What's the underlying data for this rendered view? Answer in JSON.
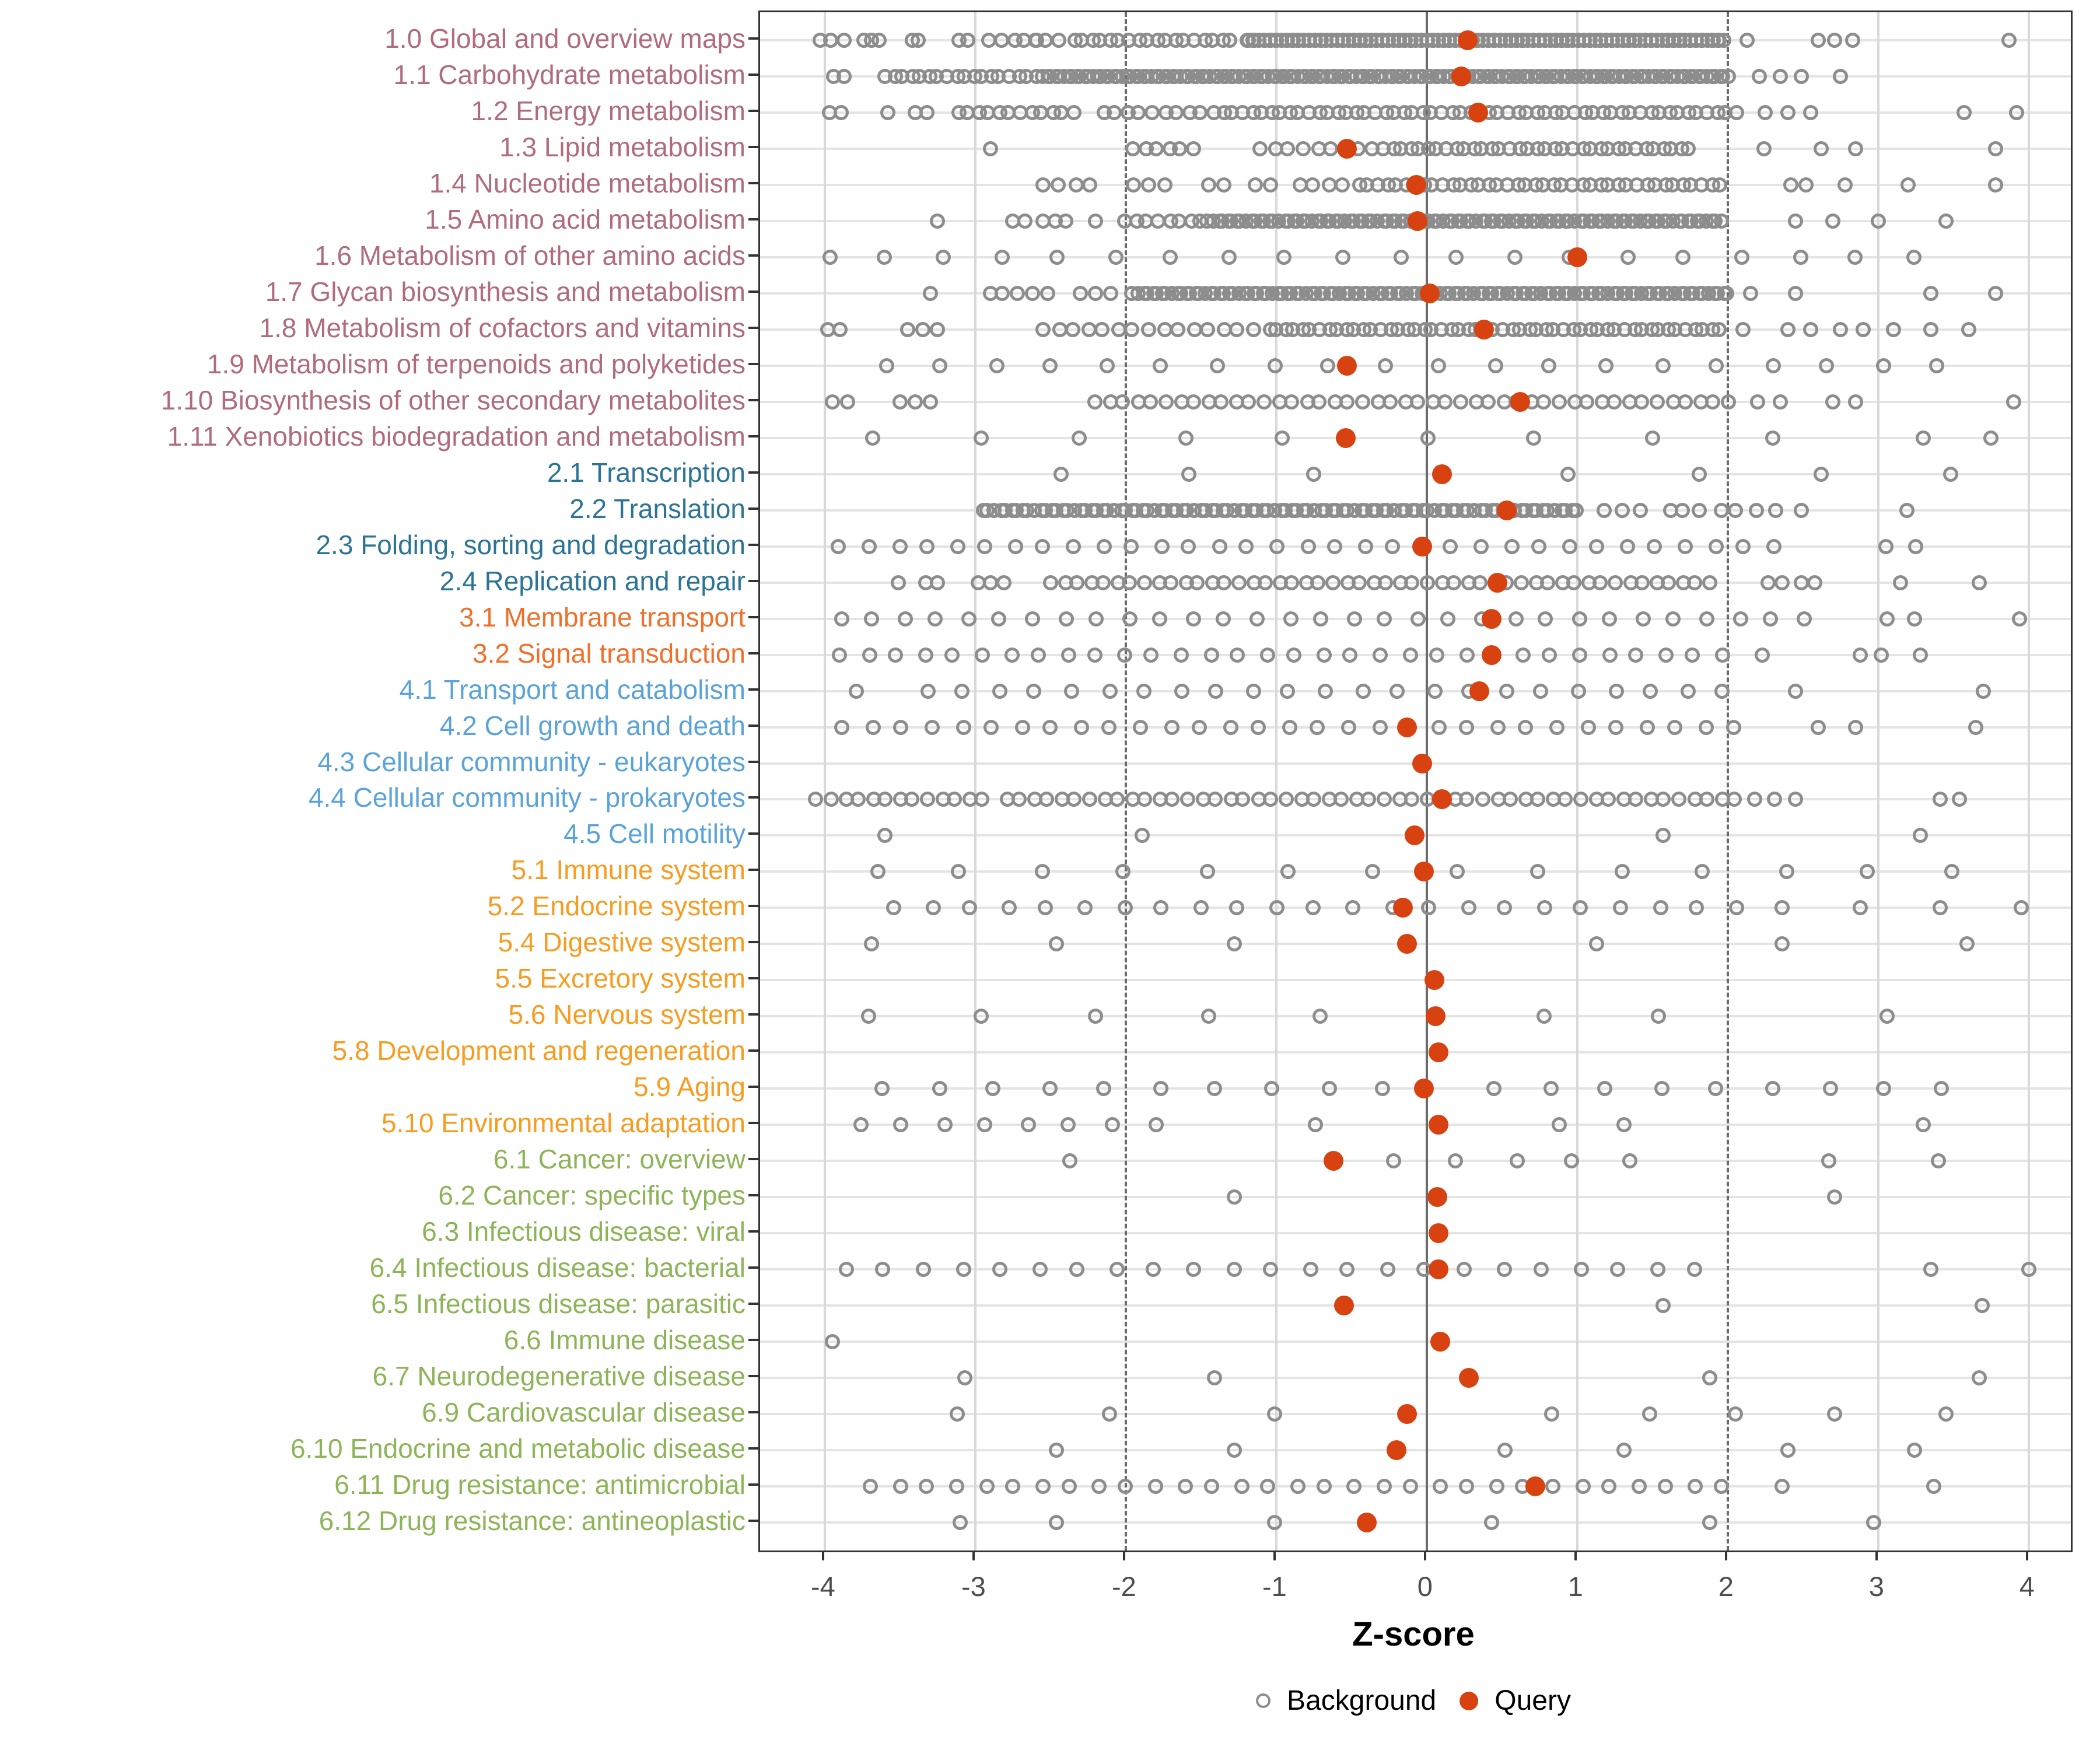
{
  "chart_data": {
    "type": "scatter",
    "title": "",
    "xlabel": "Z-score",
    "ylabel": "",
    "xlim": [
      -4.43,
      4.28
    ],
    "x_ticks": [
      -4,
      -3,
      -2,
      -1,
      0,
      1,
      2,
      3,
      4
    ],
    "grid": true,
    "reference_lines": {
      "solid": 0,
      "dashed": [
        -2,
        2
      ]
    },
    "marker_colors": {
      "background": "#8d8d8d",
      "query": "#d84211"
    },
    "group_colors": {
      "1": "#b06c7c",
      "2": "#2c7495",
      "3": "#f0702b",
      "4": "#5aa3d8",
      "5": "#f79c20",
      "6": "#8db457"
    },
    "legend": {
      "position": "bottom",
      "background_label": "Background",
      "query_label": "Query"
    },
    "rows": [
      {
        "label": "1.0 Global and overview maps",
        "group": "1",
        "query": 0.27,
        "bg_points": [
          -4.03,
          -3.96,
          -3.87,
          -3.74,
          -3.69,
          -3.64,
          -3.42,
          -3.38,
          -3.11,
          -3.05,
          -2.6,
          2.13,
          2.6,
          2.71,
          2.83,
          3.87
        ],
        "bg_bands": [
          [
            -2.9,
            -2.45,
            7
          ],
          [
            -2.35,
            -1.3,
            18
          ],
          [
            -1.2,
            1.97,
            150
          ]
        ]
      },
      {
        "label": "1.1 Carbohydrate metabolism",
        "group": "1",
        "query": 0.23,
        "bg_points": [
          -3.94,
          -3.87,
          2.21,
          2.35,
          2.49,
          2.75
        ],
        "bg_bands": [
          [
            -3.6,
            -2.6,
            18
          ],
          [
            -2.55,
            2.0,
            165
          ]
        ]
      },
      {
        "label": "1.2 Energy metabolism",
        "group": "1",
        "query": 0.34,
        "bg_points": [
          -3.97,
          -3.89,
          -3.58,
          -3.4,
          -3.32,
          2.25,
          2.4,
          2.55,
          3.57,
          3.92
        ],
        "bg_bands": [
          [
            -3.12,
            -2.35,
            12
          ],
          [
            -2.15,
            -1.42,
            10
          ],
          [
            -1.35,
            2.05,
            55
          ]
        ]
      },
      {
        "label": "1.3 Lipid metabolism",
        "group": "1",
        "query": -0.53,
        "bg_points": [
          -2.9,
          2.24,
          2.62,
          2.85,
          3.78
        ],
        "bg_bands": [
          [
            -1.95,
            -1.55,
            6
          ],
          [
            -1.1,
            -0.45,
            8
          ],
          [
            -0.35,
            1.75,
            36
          ]
        ]
      },
      {
        "label": "1.4 Nucleotide metabolism",
        "group": "1",
        "query": -0.07,
        "bg_points": [
          -2.55,
          -2.45,
          -2.33,
          -2.24,
          -1.95,
          -1.85,
          -1.74,
          -1.45,
          -1.35,
          -1.14,
          -1.04,
          2.42,
          2.52,
          2.78,
          3.2,
          3.78
        ],
        "bg_bands": [
          [
            -0.85,
            -0.55,
            4
          ],
          [
            -0.45,
            1.95,
            40
          ]
        ]
      },
      {
        "label": "1.5 Amino acid metabolism",
        "group": "1",
        "query": -0.06,
        "bg_points": [
          -3.25,
          -2.75,
          -2.67,
          -2.55,
          -2.47,
          -2.4,
          -2.2,
          2.45,
          2.7,
          3.0,
          3.45
        ],
        "bg_bands": [
          [
            -2.0,
            -1.5,
            8
          ],
          [
            -1.45,
            1.95,
            110
          ]
        ]
      },
      {
        "label": "1.6 Metabolism of other amino acids",
        "group": "1",
        "query": 1.0,
        "bg_points": [],
        "bg_bands": [
          [
            -3.97,
            3.23,
            20
          ]
        ]
      },
      {
        "label": "1.7 Glycan biosynthesis and metabolism",
        "group": "1",
        "query": 0.02,
        "bg_points": [
          -3.3,
          -2.9,
          -2.82,
          -2.72,
          -2.62,
          -2.52,
          -2.3,
          -2.2,
          -2.1,
          2.15,
          2.45,
          3.35,
          3.78
        ],
        "bg_bands": [
          [
            -1.95,
            2.0,
            125
          ]
        ]
      },
      {
        "label": "1.8 Metabolism of cofactors and vitamins",
        "group": "1",
        "query": 0.38,
        "bg_points": [
          -3.98,
          -3.9,
          -3.45,
          -3.35,
          -3.25,
          2.1,
          2.4,
          2.55,
          2.75,
          2.9,
          3.1,
          3.35,
          3.6
        ],
        "bg_bands": [
          [
            -2.55,
            -1.05,
            16
          ],
          [
            -1.0,
            1.95,
            52
          ]
        ]
      },
      {
        "label": "1.9 Metabolism of terpenoids and polyketides",
        "group": "1",
        "query": -0.53,
        "bg_points": [],
        "bg_bands": [
          [
            -3.6,
            3.4,
            20
          ]
        ]
      },
      {
        "label": "1.10 Biosynthesis of other secondary metabolites",
        "group": "1",
        "query": 0.62,
        "bg_points": [
          -3.95,
          -3.85,
          -3.5,
          -3.4,
          -3.3,
          2.2,
          2.35,
          2.7,
          2.85,
          3.9
        ],
        "bg_bands": [
          [
            -2.2,
            2.0,
            46
          ]
        ]
      },
      {
        "label": "1.11 Xenobiotics biodegradation and metabolism",
        "group": "1",
        "query": -0.54,
        "bg_points": [
          -3.68,
          -2.96,
          -2.31,
          -1.6,
          -0.96,
          0.01,
          0.71,
          1.5,
          2.3,
          3.3,
          3.75
        ],
        "bg_bands": []
      },
      {
        "label": "2.1 Transcription",
        "group": "2",
        "query": 0.1,
        "bg_points": [
          -2.43,
          -1.58,
          -0.75,
          0.94,
          1.81,
          2.62,
          3.48
        ],
        "bg_bands": []
      },
      {
        "label": "2.2 Translation",
        "group": "2",
        "query": 0.53,
        "bg_points": [
          1.18,
          1.3,
          1.42,
          1.62,
          1.7,
          1.81,
          1.96,
          2.05,
          2.19,
          2.32,
          2.49,
          3.19
        ],
        "bg_bands": [
          [
            -2.95,
            1.0,
            105
          ]
        ]
      },
      {
        "label": "2.3 Folding, sorting and degradation",
        "group": "2",
        "query": -0.03,
        "bg_points": [
          3.05,
          3.25
        ],
        "bg_bands": [
          [
            -3.9,
            2.3,
            33
          ]
        ]
      },
      {
        "label": "2.4 Replication and repair",
        "group": "2",
        "query": 0.47,
        "bg_points": [
          -3.51,
          -3.33,
          -3.25,
          -2.98,
          -2.9,
          -2.81,
          2.27,
          2.36,
          2.49,
          2.58,
          3.15,
          3.67
        ],
        "bg_bands": [
          [
            -2.5,
            1.88,
            50
          ]
        ]
      },
      {
        "label": "3.1 Membrane transport",
        "group": "3",
        "query": 0.43,
        "bg_points": [
          3.06,
          3.24,
          3.94
        ],
        "bg_bands": [
          [
            -3.9,
            2.5,
            31
          ]
        ]
      },
      {
        "label": "3.2 Signal transduction",
        "group": "3",
        "query": 0.43,
        "bg_points": [
          2.23,
          2.88,
          3.02,
          3.28
        ],
        "bg_bands": [
          [
            -3.9,
            1.96,
            32
          ]
        ]
      },
      {
        "label": "4.1 Transport and catabolism",
        "group": "4",
        "query": 0.35,
        "bg_points": [
          -3.79,
          2.45,
          3.7
        ],
        "bg_bands": [
          [
            -3.32,
            1.97,
            23
          ]
        ]
      },
      {
        "label": "4.2 Cell growth and death",
        "group": "4",
        "query": -0.13,
        "bg_points": [
          2.6,
          2.85,
          3.65
        ],
        "bg_bands": [
          [
            -3.88,
            2.05,
            31
          ]
        ]
      },
      {
        "label": "4.3 Cellular community - eukaryotes",
        "group": "4",
        "query": -0.03,
        "bg_points": [],
        "bg_bands": []
      },
      {
        "label": "4.4 Cellular community - prokaryotes",
        "group": "4",
        "query": 0.1,
        "bg_points": [
          2.18,
          2.31,
          2.45,
          3.41,
          3.54
        ],
        "bg_bands": [
          [
            -4.05,
            -2.95,
            13
          ],
          [
            -2.8,
            2.05,
            53
          ]
        ]
      },
      {
        "label": "4.5 Cell motility",
        "group": "4",
        "query": -0.08,
        "bg_points": [
          -3.6,
          -1.89,
          1.57,
          3.28
        ],
        "bg_bands": []
      },
      {
        "label": "5.1 Immune system",
        "group": "5",
        "query": -0.02,
        "bg_points": [],
        "bg_bands": [
          [
            -3.66,
            3.49,
            14
          ]
        ]
      },
      {
        "label": "5.2 Endocrine system",
        "group": "5",
        "query": -0.16,
        "bg_points": [
          2.36,
          2.88,
          3.41,
          3.95
        ],
        "bg_bands": [
          [
            -3.54,
            2.05,
            23
          ]
        ]
      },
      {
        "label": "5.4 Digestive system",
        "group": "5",
        "query": -0.13,
        "bg_points": [
          -3.69,
          -2.46,
          -1.28,
          1.13,
          2.36,
          3.59
        ],
        "bg_bands": []
      },
      {
        "label": "5.5 Excretory system",
        "group": "5",
        "query": 0.05,
        "bg_points": [],
        "bg_bands": []
      },
      {
        "label": "5.6 Nervous system",
        "group": "5",
        "query": 0.06,
        "bg_points": [
          -3.71,
          -2.96,
          -2.2,
          -1.45,
          -0.71,
          0.78,
          1.54,
          3.06
        ],
        "bg_bands": []
      },
      {
        "label": "5.8 Development and regeneration",
        "group": "5",
        "query": 0.08,
        "bg_points": [],
        "bg_bands": []
      },
      {
        "label": "5.9 Aging",
        "group": "5",
        "query": -0.02,
        "bg_points": [],
        "bg_bands": [
          [
            -3.62,
            -0.29,
            10
          ],
          [
            0.45,
            3.41,
            9
          ]
        ]
      },
      {
        "label": "5.10 Environmental adaptation",
        "group": "5",
        "query": 0.08,
        "bg_points": [
          -0.74,
          0.88,
          1.31,
          3.3
        ],
        "bg_bands": [
          [
            -3.77,
            -1.81,
            8
          ]
        ]
      },
      {
        "label": "6.1 Cancer: overview",
        "group": "6",
        "query": -0.62,
        "bg_points": [
          -2.37,
          -0.22,
          0.19,
          0.6,
          0.96,
          1.35,
          2.67,
          3.4
        ],
        "bg_bands": []
      },
      {
        "label": "6.2 Cancer: specific types",
        "group": "6",
        "query": 0.07,
        "bg_points": [
          -1.28,
          2.71
        ],
        "bg_bands": []
      },
      {
        "label": "6.3 Infectious disease: viral",
        "group": "6",
        "query": 0.08,
        "bg_points": [],
        "bg_bands": []
      },
      {
        "label": "6.4 Infectious disease: bacterial",
        "group": "6",
        "query": 0.08,
        "bg_points": [
          3.35,
          4.0
        ],
        "bg_bands": [
          [
            -3.86,
            1.79,
            23
          ]
        ]
      },
      {
        "label": "6.5 Infectious disease: parasitic",
        "group": "6",
        "query": -0.55,
        "bg_points": [
          1.57,
          3.69
        ],
        "bg_bands": []
      },
      {
        "label": "6.6 Immune disease",
        "group": "6",
        "query": 0.09,
        "bg_points": [
          -3.95
        ],
        "bg_bands": []
      },
      {
        "label": "6.7 Neurodegenerative disease",
        "group": "6",
        "query": 0.28,
        "bg_points": [
          -3.07,
          -1.41,
          1.88,
          3.67
        ],
        "bg_bands": []
      },
      {
        "label": "6.9 Cardiovascular disease",
        "group": "6",
        "query": -0.13,
        "bg_points": [
          -3.12,
          -2.11,
          -1.01,
          0.83,
          1.48,
          2.05,
          2.71,
          3.45
        ],
        "bg_bands": []
      },
      {
        "label": "6.10 Endocrine and metabolic disease",
        "group": "6",
        "query": -0.2,
        "bg_points": [
          -2.46,
          -1.28,
          0.52,
          1.31,
          2.4,
          3.24
        ],
        "bg_bands": []
      },
      {
        "label": "6.11 Drug resistance: antimicrobial",
        "group": "6",
        "query": 0.72,
        "bg_points": [
          2.36,
          3.37
        ],
        "bg_bands": [
          [
            -3.69,
            1.97,
            31
          ]
        ]
      },
      {
        "label": "6.12 Drug resistance: antineoplastic",
        "group": "6",
        "query": -0.4,
        "bg_points": [
          -3.1,
          -2.46,
          -1.01,
          0.43,
          1.88,
          2.97
        ],
        "bg_bands": []
      }
    ]
  }
}
